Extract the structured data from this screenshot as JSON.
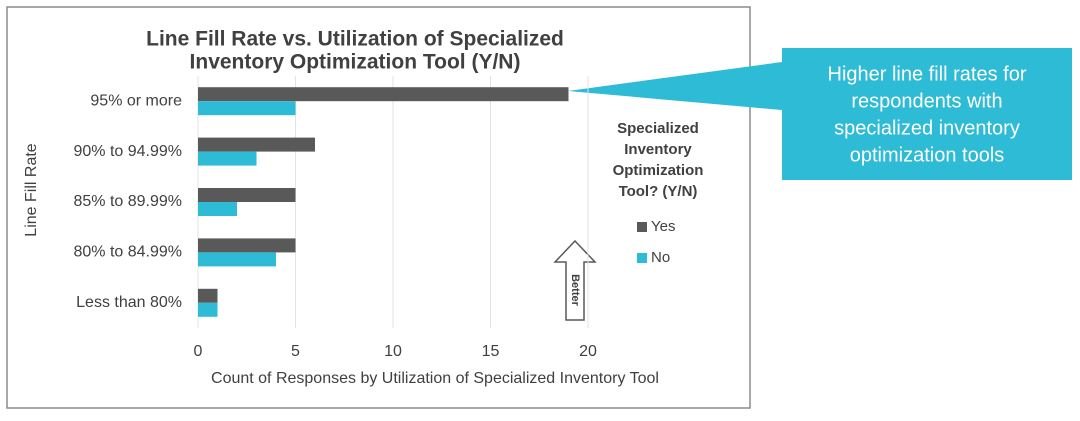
{
  "chart_data": {
    "type": "bar",
    "orientation": "horizontal",
    "title": [
      "Line Fill Rate vs. Utilization of Specialized",
      "Inventory Optimization Tool (Y/N)"
    ],
    "categories": [
      "95% or more",
      "90% to 94.99%",
      "85% to 89.99%",
      "80% to 84.99%",
      "Less than 80%"
    ],
    "series": [
      {
        "name": "Yes",
        "color": "#595959",
        "values": [
          19,
          6,
          5,
          5,
          1
        ]
      },
      {
        "name": "No",
        "color": "#2ebbd6",
        "values": [
          5,
          3,
          2,
          4,
          1
        ]
      }
    ],
    "xlim": [
      0,
      20
    ],
    "xticks": [
      0,
      5,
      10,
      15,
      20
    ],
    "grid": true,
    "xlabel": "Count of Responses by Utilization of Specialized Inventory Tool",
    "ylabel": "Line Fill Rate",
    "legend_title": [
      "Specialized",
      "Inventory",
      "Optimization",
      "Tool? (Y/N)"
    ],
    "legend_position": "right",
    "arrow_label": "Better",
    "callout": [
      "Higher line fill rates for",
      "respondents with",
      "specialized inventory",
      "optimization tools"
    ]
  }
}
